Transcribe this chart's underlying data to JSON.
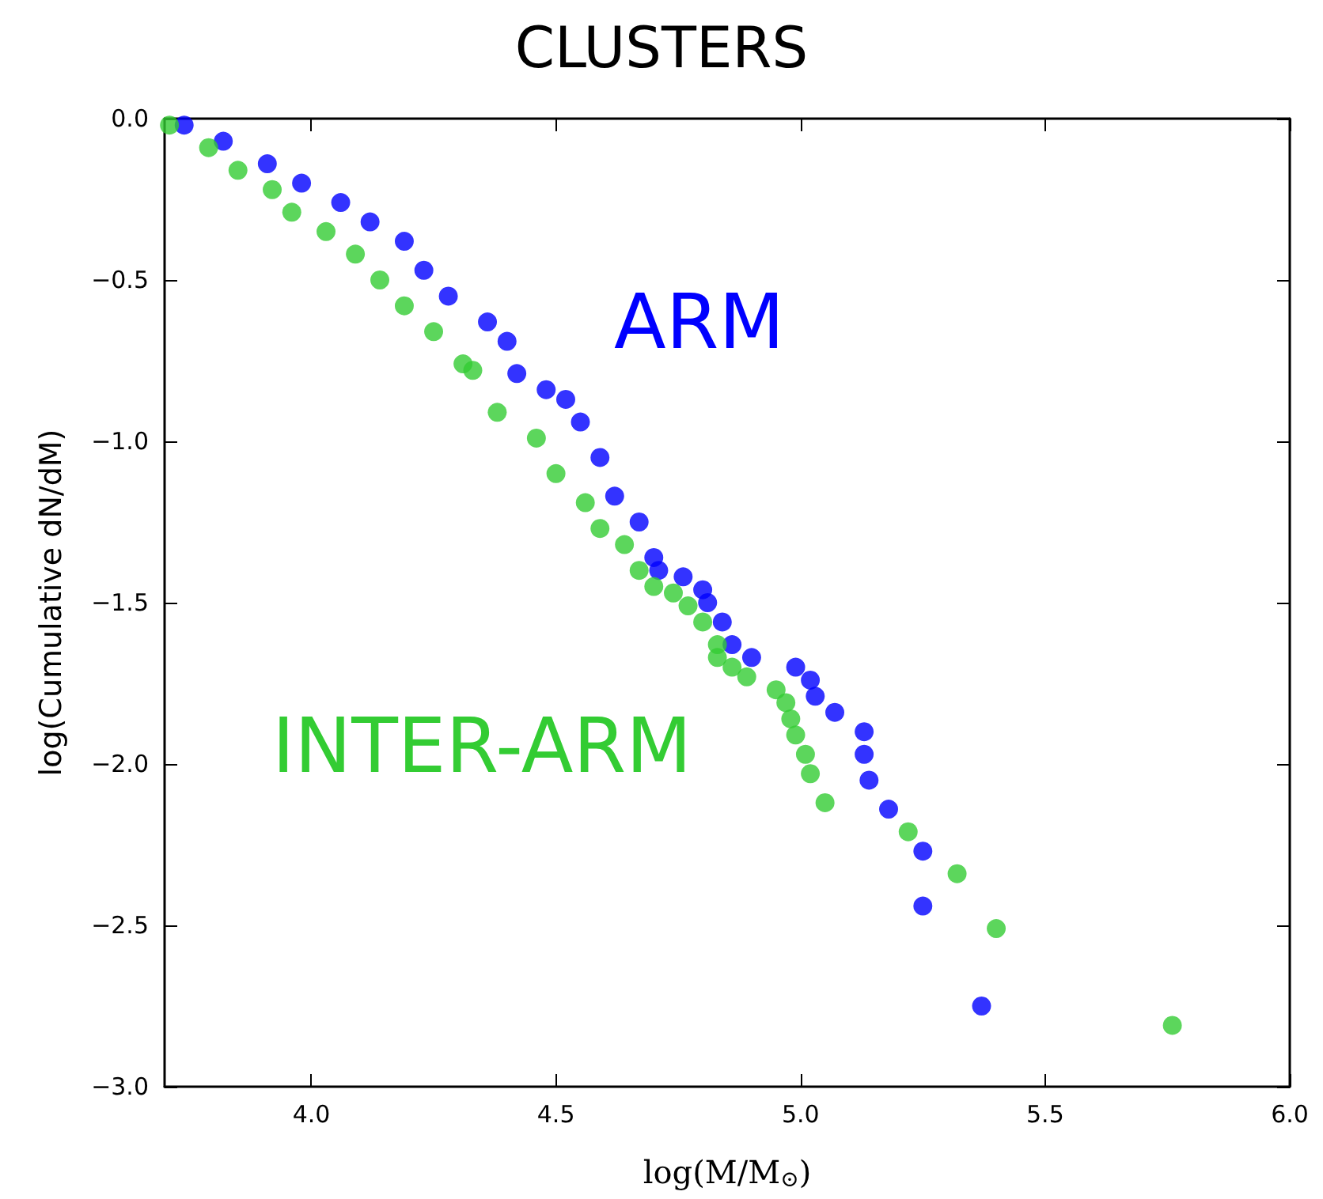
{
  "chart_data": {
    "type": "scatter",
    "title": "CLUSTERS",
    "xlabel": "log(M/M$_{⊙}$)",
    "ylabel": "log(Cumulative dN/dM)",
    "xlim": [
      3.7,
      6.0
    ],
    "xticks": [
      {
        "value": 4.0,
        "label": "4.0"
      },
      {
        "value": 4.5,
        "label": "4.5"
      },
      {
        "value": 5.0,
        "label": "5.0"
      },
      {
        "value": 5.5,
        "label": "5.5"
      },
      {
        "value": 6.0,
        "label": "6.0"
      }
    ],
    "ylim": [
      -3.0,
      0.0
    ],
    "yticks": [
      {
        "value": -3.0,
        "label": "−3.0"
      },
      {
        "value": -2.5,
        "label": "−2.5"
      },
      {
        "value": -2.0,
        "label": "−2.0"
      },
      {
        "value": -1.5,
        "label": "−1.5"
      },
      {
        "value": -1.0,
        "label": "−1.0"
      },
      {
        "value": -0.5,
        "label": "−0.5"
      },
      {
        "value": 0.0,
        "label": "0.0"
      }
    ],
    "grid": false,
    "legend": false,
    "marker": "circle",
    "series": [
      {
        "name": "ARM",
        "color": "#0000ff",
        "x": [
          3.74,
          3.82,
          3.91,
          3.98,
          4.06,
          4.12,
          4.19,
          4.23,
          4.28,
          4.36,
          4.4,
          4.42,
          4.48,
          4.52,
          4.55,
          4.59,
          4.62,
          4.67,
          4.7,
          4.71,
          4.76,
          4.8,
          4.81,
          4.84,
          4.86,
          4.9,
          4.99,
          5.02,
          5.03,
          5.07,
          5.13,
          5.13,
          5.14,
          5.18,
          5.25,
          5.25,
          5.37
        ],
        "values": [
          -0.02,
          -0.07,
          -0.14,
          -0.2,
          -0.26,
          -0.32,
          -0.38,
          -0.47,
          -0.55,
          -0.63,
          -0.69,
          -0.79,
          -0.84,
          -0.87,
          -0.94,
          -1.05,
          -1.17,
          -1.25,
          -1.36,
          -1.4,
          -1.42,
          -1.46,
          -1.5,
          -1.56,
          -1.63,
          -1.67,
          -1.7,
          -1.74,
          -1.79,
          -1.84,
          -1.9,
          -1.97,
          -2.05,
          -2.14,
          -2.27,
          -2.44,
          -2.75
        ]
      },
      {
        "name": "INTER-ARM",
        "color": "#33cc33",
        "x": [
          3.71,
          3.79,
          3.85,
          3.92,
          3.96,
          4.03,
          4.09,
          4.14,
          4.19,
          4.25,
          4.31,
          4.33,
          4.38,
          4.46,
          4.5,
          4.56,
          4.59,
          4.64,
          4.67,
          4.7,
          4.74,
          4.77,
          4.8,
          4.83,
          4.83,
          4.86,
          4.89,
          4.95,
          4.97,
          4.98,
          4.99,
          5.01,
          5.02,
          5.05,
          5.22,
          5.32,
          5.4,
          5.76
        ],
        "values": [
          -0.02,
          -0.09,
          -0.16,
          -0.22,
          -0.29,
          -0.35,
          -0.42,
          -0.5,
          -0.58,
          -0.66,
          -0.76,
          -0.78,
          -0.91,
          -0.99,
          -1.1,
          -1.19,
          -1.27,
          -1.32,
          -1.4,
          -1.45,
          -1.47,
          -1.51,
          -1.56,
          -1.63,
          -1.67,
          -1.7,
          -1.73,
          -1.77,
          -1.81,
          -1.86,
          -1.91,
          -1.97,
          -2.03,
          -2.12,
          -2.21,
          -2.34,
          -2.51,
          -2.81
        ]
      }
    ]
  }
}
